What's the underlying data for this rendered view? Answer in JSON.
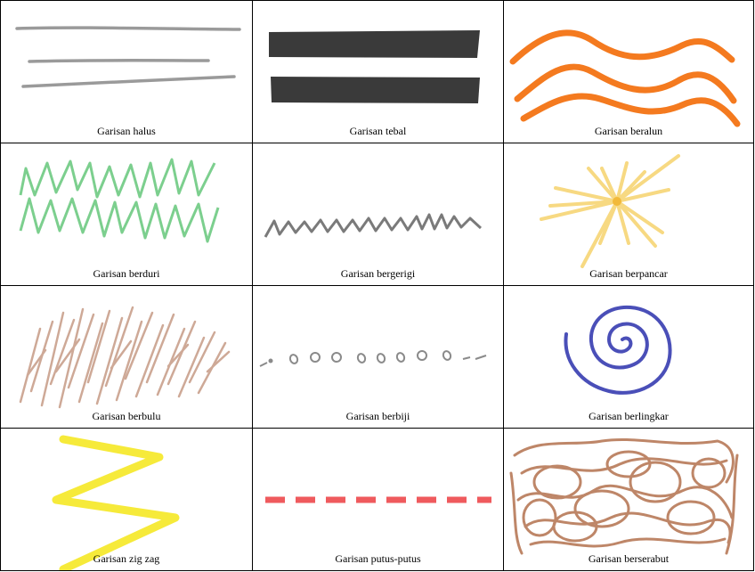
{
  "cells": [
    {
      "label": "Garisan halus",
      "color": "#9a9a9a",
      "style": "fine"
    },
    {
      "label": "Garisan tebal",
      "color": "#3a3a3a",
      "style": "thick"
    },
    {
      "label": "Garisan beralun",
      "color": "#f47a1f",
      "style": "wavy"
    },
    {
      "label": "Garisan berduri",
      "color": "#7ccf8e",
      "style": "thorny"
    },
    {
      "label": "Garisan bergerigi",
      "color": "#7a7a7a",
      "style": "jagged"
    },
    {
      "label": "Garisan berpancar",
      "color": "#f7d982",
      "style": "radiating"
    },
    {
      "label": "Garisan berbulu",
      "color": "#c9a08c",
      "style": "hairy"
    },
    {
      "label": "Garisan berbiji",
      "color": "#8a8a8a",
      "style": "seeded"
    },
    {
      "label": "Garisan berlingkar",
      "color": "#4a4fb8",
      "style": "spiral"
    },
    {
      "label": "Garisan zig zag",
      "color": "#f6ea3a",
      "style": "zigzag"
    },
    {
      "label": "Garisan putus-putus",
      "color": "#ef5a5d",
      "style": "dashed"
    },
    {
      "label": "Garisan berserabut",
      "color": "#b77a58",
      "style": "tangled"
    }
  ]
}
